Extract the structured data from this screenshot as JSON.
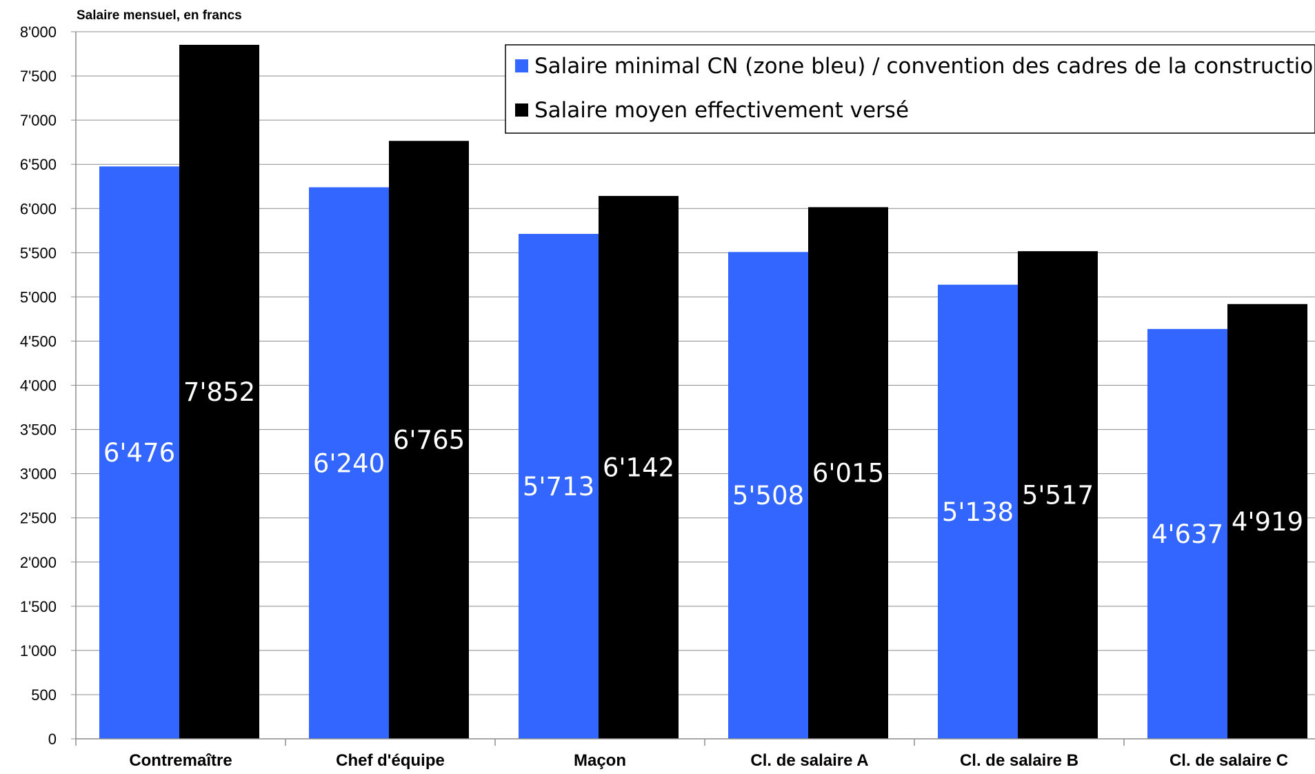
{
  "chart_data": {
    "type": "bar",
    "ylabel": "Salaire mensuel, en francs",
    "xlabel": "",
    "ylim": [
      0,
      8000
    ],
    "ytick_step": 500,
    "grid": true,
    "legend_position": "top-right",
    "categories": [
      "Contremaître",
      "Chef d'équipe",
      "Maçon",
      "Cl. de salaire A",
      "Cl. de salaire B",
      "Cl. de salaire C"
    ],
    "series": [
      {
        "name": "Salaire minimal CN (zone bleu) / convention des cadres de la construction",
        "color": "#3366FF",
        "values": [
          6476,
          6240,
          5713,
          5508,
          5138,
          4637
        ],
        "labels": [
          "6'476",
          "6'240",
          "5'713",
          "5'508",
          "5'138",
          "4'637"
        ]
      },
      {
        "name": "Salaire moyen effectivement versé",
        "color": "#000000",
        "values": [
          7852,
          6765,
          6142,
          6015,
          5517,
          4919
        ],
        "labels": [
          "7'852",
          "6'765",
          "6'142",
          "6'015",
          "5'517",
          "4'919"
        ]
      }
    ],
    "ytick_labels": [
      "0",
      "500",
      "1'000",
      "1'500",
      "2'000",
      "2'500",
      "3'000",
      "3'500",
      "4'000",
      "4'500",
      "5'000",
      "5'500",
      "6'000",
      "6'500",
      "7'000",
      "7'500",
      "8'000"
    ]
  }
}
